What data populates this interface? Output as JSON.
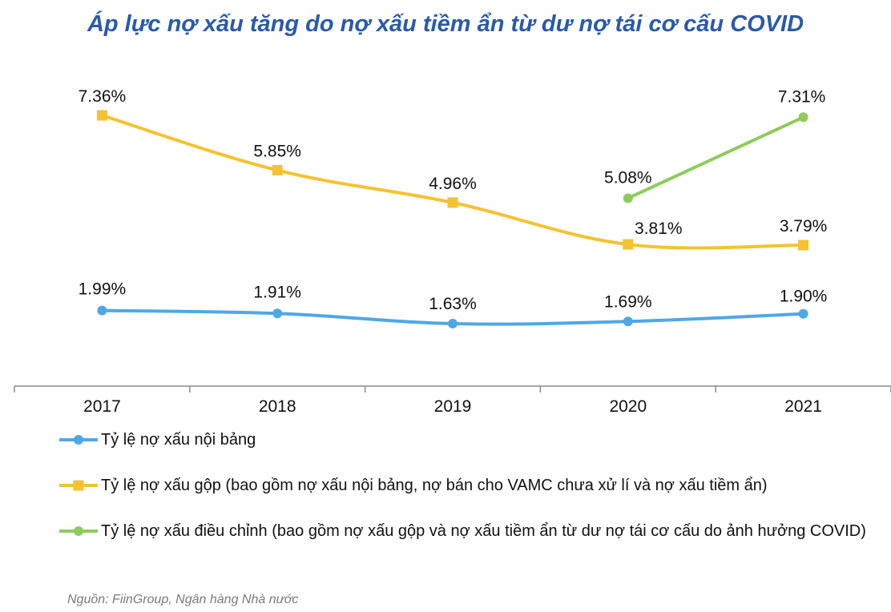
{
  "chart_data": {
    "type": "line",
    "title": "Áp lực nợ xấu tăng do nợ xấu tiềm ẩn từ dư nợ tái cơ cấu COVID",
    "categories": [
      "2017",
      "2018",
      "2019",
      "2020",
      "2021"
    ],
    "xlabel": "",
    "ylabel": "",
    "ylim": [
      0,
      8
    ],
    "grid": false,
    "legend_position": "bottom",
    "series": [
      {
        "name": "Tỷ lệ nợ xấu nội bảng",
        "color": "#4fa8e6",
        "marker": "circle",
        "x": [
          "2017",
          "2018",
          "2019",
          "2020",
          "2021"
        ],
        "values": [
          1.99,
          1.91,
          1.63,
          1.69,
          1.9
        ],
        "labels": [
          "1.99%",
          "1.91%",
          "1.63%",
          "1.69%",
          "1.90%"
        ]
      },
      {
        "name": "Tỷ lệ nợ xấu gộp (bao gồm nợ xấu nội bảng, nợ bán cho VAMC chưa xử lí và nợ xấu tiềm ẩn)",
        "color": "#f4c232",
        "marker": "square",
        "x": [
          "2017",
          "2018",
          "2019",
          "2020",
          "2021"
        ],
        "values": [
          7.36,
          5.85,
          4.96,
          3.81,
          3.79
        ],
        "labels": [
          "7.36%",
          "5.85%",
          "4.96%",
          "3.81%",
          "3.79%"
        ]
      },
      {
        "name": "Tỷ lệ nợ xấu điều chỉnh (bao gồm nợ xấu gộp và nợ xấu tiềm ẩn từ dư nợ tái cơ cấu do ảnh hưởng COVID)",
        "color": "#8fcb5c",
        "marker": "circle",
        "x": [
          "2020",
          "2021"
        ],
        "values": [
          5.08,
          7.31
        ],
        "labels": [
          "5.08%",
          "7.31%"
        ]
      }
    ]
  },
  "source": "Nguồn: FiinGroup, Ngân hàng Nhà nước"
}
